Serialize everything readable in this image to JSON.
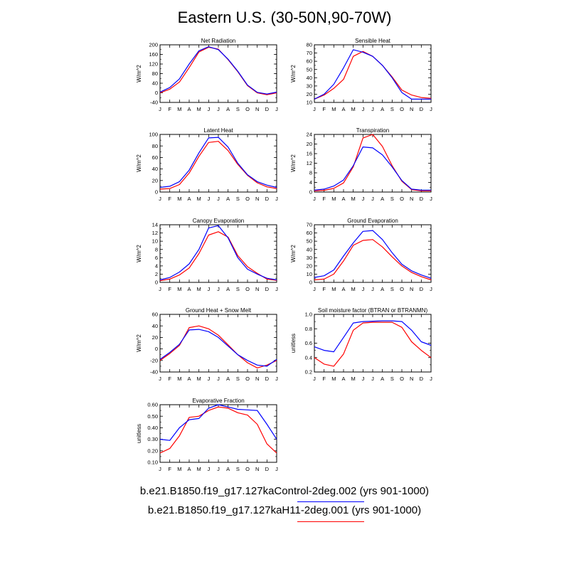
{
  "figure": {
    "title": "Eastern U.S. (30-50N,90-70W)",
    "legend": [
      {
        "label": "b.e21.B1850.f19_g17.127kaControl-2deg.002 (yrs 901-1000)",
        "color": "#0000ff"
      },
      {
        "label": "b.e21.B1850.f19_g17.127kaH11-2deg.001 (yrs 901-1000)",
        "color": "#ff0000"
      }
    ]
  },
  "chart_data": [
    {
      "type": "line",
      "title": "Net Radiation",
      "ylabel": "W/m^2",
      "ylim": [
        -40,
        200
      ],
      "yticks": [
        "-40",
        "0",
        "40",
        "80",
        "120",
        "160",
        "200"
      ],
      "ytick_values": [
        -40,
        0,
        40,
        80,
        120,
        160,
        200
      ],
      "yminor": 20,
      "categories": [
        "J",
        "F",
        "M",
        "A",
        "M",
        "J",
        "J",
        "A",
        "S",
        "O",
        "N",
        "D",
        "J"
      ],
      "series": [
        {
          "name": "Control",
          "color": "#0000ff",
          "values": [
            3,
            22,
            58,
            120,
            175,
            192,
            180,
            140,
            90,
            32,
            2,
            -5,
            3
          ]
        },
        {
          "name": "H11",
          "color": "#ff0000",
          "values": [
            0,
            15,
            45,
            105,
            170,
            190,
            182,
            138,
            88,
            30,
            0,
            -8,
            0
          ]
        }
      ]
    },
    {
      "type": "line",
      "title": "Sensible Heat",
      "ylabel": "W/m^2",
      "ylim": [
        10,
        80
      ],
      "yticks": [
        "10",
        "20",
        "30",
        "40",
        "50",
        "60",
        "70",
        "80"
      ],
      "ytick_values": [
        10,
        20,
        30,
        40,
        50,
        60,
        70,
        80
      ],
      "yminor": 5,
      "categories": [
        "J",
        "F",
        "M",
        "A",
        "M",
        "J",
        "J",
        "A",
        "S",
        "O",
        "N",
        "D",
        "J"
      ],
      "series": [
        {
          "name": "Control",
          "color": "#0000ff",
          "values": [
            14,
            20,
            32,
            52,
            74,
            71,
            66,
            55,
            40,
            22,
            14,
            14,
            14
          ]
        },
        {
          "name": "H11",
          "color": "#ff0000",
          "values": [
            14,
            19,
            27,
            38,
            66,
            72,
            66,
            55,
            41,
            25,
            19,
            16,
            15
          ]
        }
      ]
    },
    {
      "type": "line",
      "title": "Latent Heat",
      "ylabel": "W/m^2",
      "ylim": [
        0,
        100
      ],
      "yticks": [
        "0",
        "20",
        "40",
        "60",
        "80",
        "100"
      ],
      "ytick_values": [
        0,
        20,
        40,
        60,
        80,
        100
      ],
      "yminor": 10,
      "categories": [
        "J",
        "F",
        "M",
        "A",
        "M",
        "J",
        "J",
        "A",
        "S",
        "O",
        "N",
        "D",
        "J"
      ],
      "series": [
        {
          "name": "Control",
          "color": "#0000ff",
          "values": [
            8,
            10,
            18,
            38,
            68,
            94,
            95,
            78,
            50,
            30,
            18,
            12,
            8
          ]
        },
        {
          "name": "H11",
          "color": "#ff0000",
          "values": [
            5,
            6,
            13,
            33,
            62,
            86,
            88,
            72,
            48,
            29,
            16,
            9,
            6
          ]
        }
      ]
    },
    {
      "type": "line",
      "title": "Transpiration",
      "ylabel": "W/m^2",
      "ylim": [
        0,
        24
      ],
      "yticks": [
        "0",
        "4",
        "8",
        "12",
        "16",
        "20",
        "24"
      ],
      "ytick_values": [
        0,
        4,
        8,
        12,
        16,
        20,
        24
      ],
      "yminor": 2,
      "categories": [
        "J",
        "F",
        "M",
        "A",
        "M",
        "J",
        "J",
        "A",
        "S",
        "O",
        "N",
        "D",
        "J"
      ],
      "series": [
        {
          "name": "Control",
          "color": "#0000ff",
          "values": [
            0.8,
            1.2,
            2.5,
            5,
            11,
            18.8,
            18.4,
            15.5,
            10.5,
            4.8,
            1.2,
            0.8,
            0.8
          ]
        },
        {
          "name": "H11",
          "color": "#ff0000",
          "values": [
            0.5,
            0.7,
            1.5,
            3.8,
            10.5,
            22.5,
            24,
            19,
            11,
            4.5,
            1,
            0.5,
            0.5
          ]
        }
      ]
    },
    {
      "type": "line",
      "title": "Canopy Evaporation",
      "ylabel": "W/m^2",
      "ylim": [
        0,
        14
      ],
      "yticks": [
        "0",
        "2",
        "4",
        "6",
        "8",
        "10",
        "12",
        "14"
      ],
      "ytick_values": [
        0,
        2,
        4,
        6,
        8,
        10,
        12,
        14
      ],
      "yminor": 1,
      "categories": [
        "J",
        "F",
        "M",
        "A",
        "M",
        "J",
        "J",
        "A",
        "S",
        "O",
        "N",
        "D",
        "J"
      ],
      "series": [
        {
          "name": "Control",
          "color": "#0000ff",
          "values": [
            0.6,
            1.2,
            2.5,
            4.5,
            8,
            13.2,
            13.8,
            10.8,
            6,
            3.2,
            2,
            1,
            0.6
          ]
        },
        {
          "name": "H11",
          "color": "#ff0000",
          "values": [
            0.4,
            0.8,
            1.8,
            3.5,
            7,
            11.5,
            12.3,
            11,
            6.5,
            3.8,
            2.2,
            0.8,
            0.5
          ]
        }
      ]
    },
    {
      "type": "line",
      "title": "Ground Evaporation",
      "ylabel": "W/m^2",
      "ylim": [
        0,
        70
      ],
      "yticks": [
        "0",
        "10",
        "20",
        "30",
        "40",
        "50",
        "60",
        "70"
      ],
      "ytick_values": [
        0,
        10,
        20,
        30,
        40,
        50,
        60,
        70
      ],
      "yminor": 5,
      "categories": [
        "J",
        "F",
        "M",
        "A",
        "M",
        "J",
        "J",
        "A",
        "S",
        "O",
        "N",
        "D",
        "J"
      ],
      "series": [
        {
          "name": "Control",
          "color": "#0000ff",
          "values": [
            6,
            8,
            15,
            32,
            48,
            62,
            63,
            52,
            36,
            22,
            14,
            9,
            5
          ]
        },
        {
          "name": "H11",
          "color": "#ff0000",
          "values": [
            3,
            4,
            10,
            26,
            45,
            51,
            52,
            43,
            31,
            20,
            12,
            7,
            3
          ]
        }
      ]
    },
    {
      "type": "line",
      "title": "Ground Heat + Snow Melt",
      "ylabel": "W/m^2",
      "ylim": [
        -40,
        60
      ],
      "yticks": [
        "-40",
        "-20",
        "0",
        "20",
        "40",
        "60"
      ],
      "ytick_values": [
        -40,
        -20,
        0,
        20,
        40,
        60
      ],
      "yminor": 10,
      "categories": [
        "J",
        "F",
        "M",
        "A",
        "M",
        "J",
        "J",
        "A",
        "S",
        "O",
        "N",
        "D",
        "J"
      ],
      "series": [
        {
          "name": "Control",
          "color": "#0000ff",
          "values": [
            -18,
            -6,
            8,
            33,
            34,
            30,
            20,
            5,
            -10,
            -20,
            -28,
            -30,
            -18
          ]
        },
        {
          "name": "H11",
          "color": "#ff0000",
          "values": [
            -20,
            -8,
            6,
            37,
            40,
            35,
            24,
            7,
            -10,
            -24,
            -33,
            -28,
            -20
          ]
        }
      ]
    },
    {
      "type": "line",
      "title": "Soil moisture factor (BTRAN or BTRANMN)",
      "ylabel": "unitless",
      "ylim": [
        0.2,
        1.0
      ],
      "yticks": [
        "0.2",
        "0.4",
        "0.6",
        "0.8",
        "1.0"
      ],
      "ytick_values": [
        0.2,
        0.4,
        0.6,
        0.8,
        1.0
      ],
      "yminor": 0.1,
      "categories": [
        "J",
        "F",
        "M",
        "A",
        "M",
        "J",
        "J",
        "A",
        "S",
        "O",
        "N",
        "D",
        "J"
      ],
      "series": [
        {
          "name": "Control",
          "color": "#0000ff",
          "values": [
            0.55,
            0.5,
            0.48,
            0.68,
            0.88,
            0.9,
            0.905,
            0.91,
            0.91,
            0.9,
            0.78,
            0.62,
            0.57
          ]
        },
        {
          "name": "H11",
          "color": "#ff0000",
          "values": [
            0.4,
            0.31,
            0.28,
            0.45,
            0.78,
            0.88,
            0.89,
            0.89,
            0.89,
            0.82,
            0.62,
            0.5,
            0.4
          ]
        }
      ]
    },
    {
      "type": "line",
      "title": "Evaporative Fraction",
      "ylabel": "unitless",
      "ylim": [
        0.1,
        0.6
      ],
      "yticks": [
        "0.10",
        "0.20",
        "0.30",
        "0.40",
        "0.50",
        "0.60"
      ],
      "ytick_values": [
        0.1,
        0.2,
        0.3,
        0.4,
        0.5,
        0.6
      ],
      "yminor": 0.05,
      "categories": [
        "J",
        "F",
        "M",
        "A",
        "M",
        "J",
        "J",
        "A",
        "S",
        "O",
        "N",
        "D",
        "J"
      ],
      "series": [
        {
          "name": "Control",
          "color": "#0000ff",
          "values": [
            0.3,
            0.29,
            0.4,
            0.47,
            0.48,
            0.57,
            0.6,
            0.58,
            0.56,
            0.555,
            0.55,
            0.43,
            0.3
          ]
        },
        {
          "name": "H11",
          "color": "#ff0000",
          "values": [
            0.18,
            0.22,
            0.33,
            0.49,
            0.5,
            0.55,
            0.58,
            0.57,
            0.53,
            0.51,
            0.43,
            0.26,
            0.18
          ]
        }
      ]
    }
  ]
}
